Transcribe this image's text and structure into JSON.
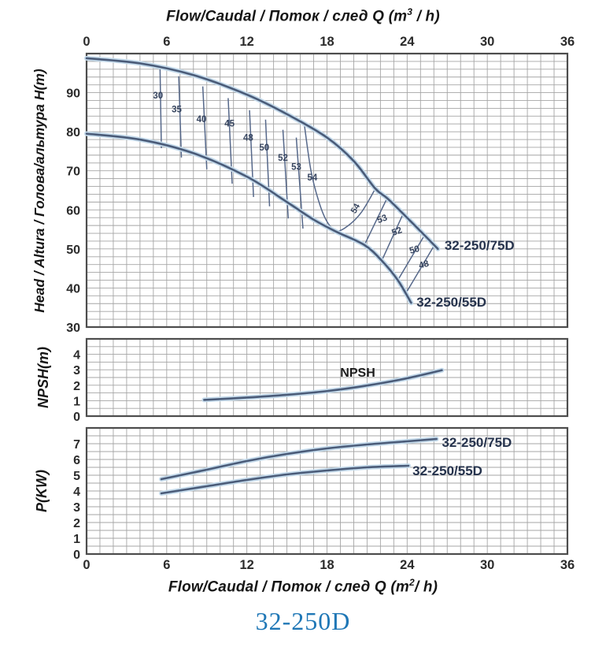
{
  "page": {
    "title": "32-250D"
  },
  "colors": {
    "accent_blue": "#1f77b6",
    "curve": "#4a5b78",
    "curve_halo": "#c3d9ea",
    "contour": "#56688a",
    "grid": "#a5a5a5",
    "frame": "#4d4d4d",
    "tick_text": "#2b2b2b",
    "model_label": "#26334d",
    "eff_label": "#37455f",
    "npsh_label": "#1c1c1c"
  },
  "axis_titles": {
    "top": {
      "prefix": "Flow/Caudal  /  Поток / след   Q (m",
      "sup": "3",
      "suffix": " / h)"
    },
    "bottom": {
      "prefix": "Flow/Caudal  /  Поток / след   Q (m",
      "sup": "2",
      "suffix": "/ h)"
    },
    "head_y": "Head / Altura  /  Голова/альтура H(m)",
    "npsh_y": "NPSH(m)",
    "power_y": "P(KW)"
  },
  "chart_data": [
    {
      "id": "head",
      "type": "line",
      "title": "Head vs Flow with efficiency contours",
      "xlabel": "Q (m3/h)",
      "ylabel": "Head / Altura / Голова/альтура H(m)",
      "xlim": [
        0,
        36
      ],
      "ylim": [
        30,
        100
      ],
      "xticks": [
        0,
        6,
        12,
        18,
        24,
        30,
        36
      ],
      "yticks": [
        30,
        40,
        50,
        60,
        70,
        80,
        90
      ],
      "xtick_side": "top",
      "grid": {
        "x_step": 1,
        "y_step": 2
      },
      "series": [
        {
          "name": "32-250/75D",
          "points": [
            [
              0,
              98.8
            ],
            [
              4,
              97.5
            ],
            [
              8,
              94.5
            ],
            [
              12,
              89.5
            ],
            [
              15,
              84.5
            ],
            [
              18,
              78.5
            ],
            [
              20,
              72.5
            ],
            [
              21.6,
              65.5
            ],
            [
              22.5,
              63
            ],
            [
              23.7,
              59
            ],
            [
              25.3,
              53.5
            ],
            [
              26.3,
              50
            ]
          ]
        },
        {
          "name": "32-250/55D",
          "points": [
            [
              0,
              79.5
            ],
            [
              4,
              78
            ],
            [
              8,
              74.5
            ],
            [
              12,
              68.5
            ],
            [
              15,
              62
            ],
            [
              17,
              57.5
            ],
            [
              18.7,
              54.4
            ],
            [
              20.8,
              51
            ],
            [
              22.1,
              47
            ],
            [
              23.3,
              42
            ],
            [
              24.3,
              36.2
            ]
          ]
        }
      ],
      "efficiency_contours": [
        {
          "label": "30",
          "points": [
            [
              5.5,
              96.2
            ],
            [
              5.6,
              75.8
            ]
          ]
        },
        {
          "label": "35",
          "points": [
            [
              6.9,
              94.2
            ],
            [
              7.1,
              73.4
            ]
          ]
        },
        {
          "label": "40",
          "points": [
            [
              8.7,
              91.6
            ],
            [
              9.0,
              70.4
            ]
          ]
        },
        {
          "label": "45",
          "points": [
            [
              10.6,
              88.6
            ],
            [
              10.9,
              66.7
            ]
          ]
        },
        {
          "label": "48",
          "points": [
            [
              12.2,
              85.5
            ],
            [
              12.5,
              63.3
            ]
          ]
        },
        {
          "label": "50",
          "points": [
            [
              13.4,
              83.1
            ],
            [
              13.7,
              60.9
            ]
          ]
        },
        {
          "label": "52",
          "points": [
            [
              14.7,
              80.5
            ],
            [
              15.1,
              57.8
            ]
          ]
        },
        {
          "label": "53",
          "points": [
            [
              15.7,
              78.5
            ],
            [
              16.2,
              55.2
            ]
          ]
        },
        {
          "label": "54",
          "points": [
            [
              16.3,
              81.9
            ],
            [
              16.8,
              70
            ],
            [
              17.4,
              62
            ],
            [
              18.0,
              57
            ],
            [
              18.7,
              54.6
            ],
            [
              19.6,
              56
            ],
            [
              20.6,
              59.5
            ],
            [
              21.6,
              65.3
            ]
          ]
        },
        {
          "label": "53",
          "points": [
            [
              22.5,
              63
            ],
            [
              20.8,
              51
            ]
          ]
        },
        {
          "label": "52",
          "points": [
            [
              23.7,
              59
            ],
            [
              22.1,
              47
            ]
          ]
        },
        {
          "label": "50",
          "points": [
            [
              25.3,
              53.5
            ],
            [
              23.3,
              42
            ]
          ]
        },
        {
          "label": "48",
          "points": [
            [
              26.1,
              51.3
            ],
            [
              24.0,
              39.2
            ]
          ]
        }
      ],
      "labels": [
        {
          "text": "30",
          "q": 5.35,
          "v": 88.5,
          "size": 11.5,
          "kind": "eff"
        },
        {
          "text": "35",
          "q": 6.75,
          "v": 85.0,
          "size": 11.5,
          "kind": "eff"
        },
        {
          "text": "40",
          "q": 8.6,
          "v": 82.5,
          "size": 11.5,
          "kind": "eff"
        },
        {
          "text": "45",
          "q": 10.7,
          "v": 81.3,
          "size": 11.5,
          "kind": "eff"
        },
        {
          "text": "48",
          "q": 12.1,
          "v": 77.7,
          "size": 11.5,
          "kind": "eff"
        },
        {
          "text": "50",
          "q": 13.3,
          "v": 75.2,
          "size": 11.5,
          "kind": "eff"
        },
        {
          "text": "52",
          "q": 14.7,
          "v": 72.6,
          "size": 11.5,
          "kind": "eff"
        },
        {
          "text": "53",
          "q": 15.7,
          "v": 70.2,
          "size": 11.5,
          "kind": "eff"
        },
        {
          "text": "54",
          "q": 16.9,
          "v": 67.5,
          "size": 11.5,
          "kind": "eff"
        },
        {
          "text": "54",
          "q": 20.3,
          "v": 60.0,
          "size": 11,
          "kind": "eff",
          "rotate": -60
        },
        {
          "text": "53",
          "q": 22.2,
          "v": 57.0,
          "size": 11.5,
          "kind": "eff",
          "rotate": -20
        },
        {
          "text": "52",
          "q": 23.3,
          "v": 53.8,
          "size": 11.5,
          "kind": "eff",
          "rotate": -20
        },
        {
          "text": "50",
          "q": 24.6,
          "v": 49.1,
          "size": 11.5,
          "kind": "eff",
          "rotate": -15
        },
        {
          "text": "48",
          "q": 25.3,
          "v": 45.3,
          "size": 11.5,
          "kind": "eff",
          "rotate": -15
        },
        {
          "text": "32-250/75D",
          "q": 26.8,
          "v": 49.8,
          "size": 17,
          "kind": "model",
          "anchor": "start"
        },
        {
          "text": "32-250/55D",
          "q": 24.7,
          "v": 35.2,
          "size": 17,
          "kind": "model",
          "anchor": "start"
        }
      ]
    },
    {
      "id": "npsh",
      "type": "line",
      "title": "NPSH vs Flow",
      "xlabel": "Q (m3/h)",
      "ylabel": "NPSH(m)",
      "xlim": [
        0,
        36
      ],
      "ylim": [
        0,
        5
      ],
      "xticks": [],
      "yticks": [
        0,
        1,
        2,
        3,
        4
      ],
      "xtick_side": "none",
      "grid": {
        "x_step": 1,
        "y_step": 0.5
      },
      "series": [
        {
          "name": "NPSH",
          "points": [
            [
              8.8,
              1.05
            ],
            [
              12,
              1.2
            ],
            [
              15,
              1.38
            ],
            [
              18,
              1.62
            ],
            [
              21,
              1.98
            ],
            [
              24,
              2.45
            ],
            [
              26.6,
              2.97
            ]
          ]
        }
      ],
      "efficiency_contours": [],
      "labels": [
        {
          "text": "NPSH",
          "q": 20.3,
          "v": 2.55,
          "size": 16,
          "kind": "npsh"
        }
      ]
    },
    {
      "id": "power",
      "type": "line",
      "title": "Power vs Flow",
      "xlabel": "Q (m2/h)",
      "ylabel": "P(KW)",
      "xlim": [
        0,
        36
      ],
      "ylim": [
        0,
        8
      ],
      "xticks": [
        0,
        6,
        12,
        18,
        24,
        30,
        36
      ],
      "yticks": [
        0,
        1,
        2,
        3,
        4,
        5,
        6,
        7
      ],
      "xtick_side": "bottom",
      "grid": {
        "x_step": 1,
        "y_step": 0.5
      },
      "series": [
        {
          "name": "32-250/75D",
          "points": [
            [
              5.6,
              4.75
            ],
            [
              9,
              5.35
            ],
            [
              12,
              5.9
            ],
            [
              15,
              6.35
            ],
            [
              18,
              6.7
            ],
            [
              21,
              6.95
            ],
            [
              24,
              7.15
            ],
            [
              26.2,
              7.3
            ]
          ]
        },
        {
          "name": "32-250/55D",
          "points": [
            [
              5.6,
              3.85
            ],
            [
              9,
              4.3
            ],
            [
              12,
              4.7
            ],
            [
              15,
              5.05
            ],
            [
              18,
              5.3
            ],
            [
              21,
              5.5
            ],
            [
              24.1,
              5.6
            ]
          ]
        }
      ],
      "efficiency_contours": [],
      "labels": [
        {
          "text": "32-250/75D",
          "q": 26.6,
          "v": 6.8,
          "size": 17,
          "kind": "model",
          "anchor": "start"
        },
        {
          "text": "32-250/55D",
          "q": 24.4,
          "v": 5.0,
          "size": 17,
          "kind": "model",
          "anchor": "start"
        }
      ]
    }
  ]
}
